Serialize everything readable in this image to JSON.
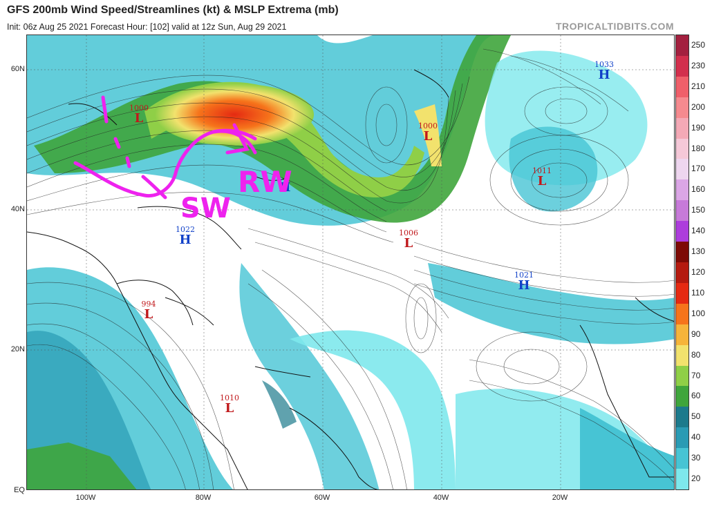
{
  "header": {
    "title": "GFS 200mb Wind Speed/Streamlines (kt) & MSLP Extrema (mb)",
    "subtitle": "Init: 06z Aug 25 2021   Forecast Hour: [102]   valid at 12z Sun, Aug 29 2021",
    "brand": "TROPICALTIDBITS.COM"
  },
  "axes": {
    "lat_labels": [
      "60N",
      "40N",
      "20N",
      "EQ"
    ],
    "lon_labels": [
      "100W",
      "80W",
      "60W",
      "40W",
      "20W"
    ]
  },
  "colorbar": {
    "labels": [
      "250",
      "230",
      "210",
      "200",
      "190",
      "180",
      "170",
      "160",
      "150",
      "140",
      "130",
      "120",
      "110",
      "100",
      "90",
      "80",
      "70",
      "60",
      "50",
      "40",
      "30",
      "20"
    ],
    "colors": [
      "#a3203f",
      "#d22f4d",
      "#ef5f6a",
      "#f58a8f",
      "#f4a9b6",
      "#f5c8d8",
      "#eed6ef",
      "#dba6e6",
      "#c77ad9",
      "#ad3ddc",
      "#7d0a05",
      "#b41a0f",
      "#e52a12",
      "#f6741b",
      "#f6b43a",
      "#f2e26d",
      "#8fcf47",
      "#3fa53c",
      "#1c7a8c",
      "#2a9bb4",
      "#47c4d4",
      "#7ee8ec"
    ]
  },
  "pressure_systems": [
    {
      "type": "L",
      "value": "1000",
      "kind": "low"
    },
    {
      "type": "L",
      "value": "1000",
      "kind": "low"
    },
    {
      "type": "L",
      "value": "1011",
      "kind": "low"
    },
    {
      "type": "L",
      "value": "1006",
      "kind": "low"
    },
    {
      "type": "L",
      "value": "994",
      "kind": "low"
    },
    {
      "type": "L",
      "value": "1010",
      "kind": "low"
    },
    {
      "type": "H",
      "value": "1033",
      "kind": "high"
    },
    {
      "type": "H",
      "value": "1022",
      "kind": "high"
    },
    {
      "type": "H",
      "value": "1021",
      "kind": "high"
    },
    {
      "type": "H",
      "value": "",
      "kind": "high"
    }
  ],
  "annotations": {
    "rw": "RW",
    "sw": "SW",
    "color": "#ee22ee"
  }
}
